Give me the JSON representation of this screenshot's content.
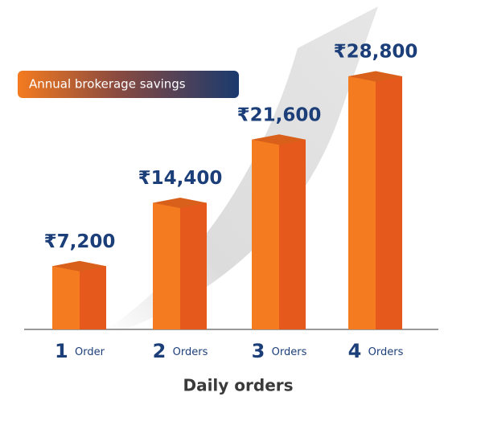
{
  "chart_data": {
    "type": "bar3d",
    "title": "Annual brokerage savings",
    "categories": [
      "1 Order",
      "2 Orders",
      "3 Orders",
      "4 Orders"
    ],
    "values": [
      7200,
      14400,
      21600,
      28800
    ],
    "value_labels": [
      "₹7,200",
      "₹14,400",
      "₹21,600",
      "₹28,800"
    ],
    "x_label": "Daily orders",
    "color": "#f47b20"
  }
}
